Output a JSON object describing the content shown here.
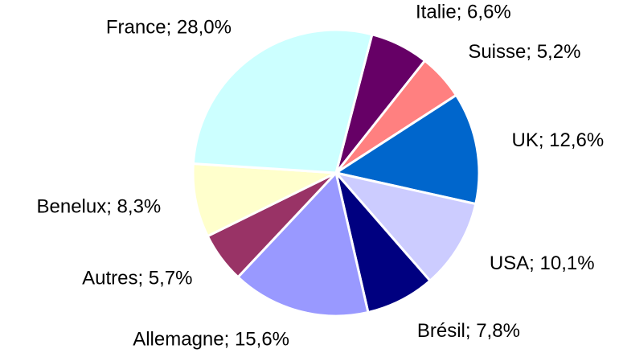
{
  "chart_data": {
    "type": "pie",
    "values": [
      6.6,
      5.2,
      12.6,
      10.1,
      7.8,
      15.6,
      5.7,
      8.3,
      28.0
    ],
    "value_labels": [
      "Italie; 6,6%",
      "Suisse; 5,2%",
      "UK; 12,6%",
      "USA; 10,1%",
      "Brésil; 7,8%",
      "Allemagne; 15,6%",
      "Autres; 5,7%",
      "Benelux; 8,3%",
      "France; 28,0%"
    ],
    "colors": [
      "#660066",
      "#ff8080",
      "#0066cc",
      "#ccccff",
      "#000080",
      "#9999ff",
      "#993366",
      "#ffffcc",
      "#ccffff"
    ]
  }
}
